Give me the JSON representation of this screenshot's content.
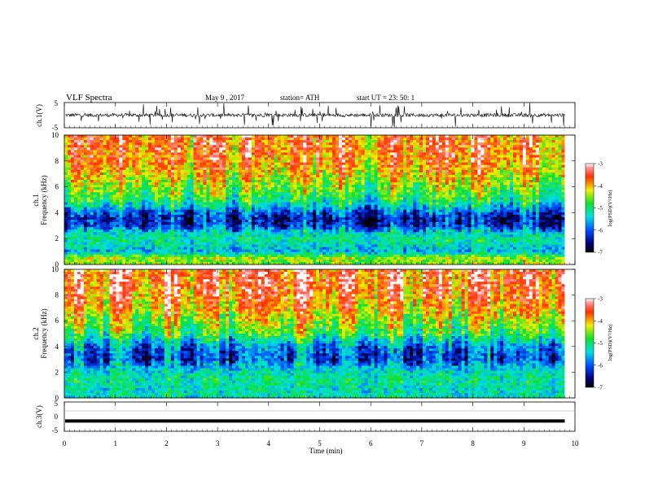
{
  "header": {
    "title": "VLF  Spectra",
    "date": "May 9  , 2017",
    "station": "station= ATH",
    "start": "start  UT  =   23: 50: 1"
  },
  "chart_data": [
    {
      "type": "line",
      "panel": "ch1-waveform",
      "ylabel": "ch.1(V)",
      "ylim": [
        -5,
        5
      ],
      "yticks": [
        "5",
        "-5"
      ],
      "xlim": [
        0,
        10
      ],
      "baseline_value": 0,
      "note_values": "dense noisy trace near 0 V with many spikes"
    },
    {
      "type": "heatmap",
      "panel": "ch1-spectrogram",
      "ylabel": "ch.1\nFrequency  (kHz)",
      "ylabel_lines": [
        "ch.1",
        "Frequency  (kHz)"
      ],
      "ylim": [
        0,
        10
      ],
      "yticks": [
        "0",
        "2",
        "4",
        "6",
        "8",
        "10"
      ],
      "xlim": [
        0,
        10
      ],
      "x_end": 9.8,
      "colorbar": {
        "label": "log(PSD)(V²/Hz)",
        "range": [
          -7,
          -3
        ],
        "ticks": [
          "-3",
          "-4",
          "-5",
          "-6",
          "-7"
        ]
      },
      "profile": [
        {
          "f": 0.0,
          "v": -4.6
        },
        {
          "f": 0.5,
          "v": -4.4
        },
        {
          "f": 1.0,
          "v": -5.6
        },
        {
          "f": 1.5,
          "v": -5.3
        },
        {
          "f": 2.0,
          "v": -5.1
        },
        {
          "f": 2.5,
          "v": -5.4
        },
        {
          "f": 3.0,
          "v": -6.2
        },
        {
          "f": 3.5,
          "v": -6.4
        },
        {
          "f": 4.0,
          "v": -6.0
        },
        {
          "f": 4.5,
          "v": -5.4
        },
        {
          "f": 5.0,
          "v": -4.9
        },
        {
          "f": 6.0,
          "v": -4.5
        },
        {
          "f": 7.0,
          "v": -4.1
        },
        {
          "f": 8.0,
          "v": -3.8
        },
        {
          "f": 9.0,
          "v": -3.7
        },
        {
          "f": 10.0,
          "v": -3.7
        }
      ]
    },
    {
      "type": "heatmap",
      "panel": "ch2-spectrogram",
      "ylabel": "ch.2\nFrequency  (kHz)",
      "ylabel_lines": [
        "ch.2",
        "Frequency  (kHz)"
      ],
      "ylim": [
        0,
        10
      ],
      "yticks": [
        "0",
        "2",
        "4",
        "6",
        "8",
        "10"
      ],
      "xlim": [
        0,
        10
      ],
      "x_end": 9.8,
      "colorbar": {
        "label": "log(PSD)(V²/Hz)",
        "range": [
          -7,
          -3
        ],
        "ticks": [
          "-3",
          "-4",
          "-5",
          "-6",
          "-7"
        ]
      },
      "profile": [
        {
          "f": 0.0,
          "v": -5.2
        },
        {
          "f": 0.5,
          "v": -5.3
        },
        {
          "f": 1.0,
          "v": -5.2
        },
        {
          "f": 1.5,
          "v": -5.1
        },
        {
          "f": 2.0,
          "v": -5.3
        },
        {
          "f": 2.5,
          "v": -5.6
        },
        {
          "f": 3.0,
          "v": -6.1
        },
        {
          "f": 3.5,
          "v": -6.0
        },
        {
          "f": 4.0,
          "v": -5.8
        },
        {
          "f": 4.5,
          "v": -5.3
        },
        {
          "f": 5.0,
          "v": -4.8
        },
        {
          "f": 6.0,
          "v": -4.4
        },
        {
          "f": 7.0,
          "v": -4.0
        },
        {
          "f": 8.0,
          "v": -3.7
        },
        {
          "f": 9.0,
          "v": -3.6
        },
        {
          "f": 10.0,
          "v": -3.6
        }
      ]
    },
    {
      "type": "line",
      "panel": "ch3-waveform",
      "ylabel": "ch.3(V)",
      "ylim": [
        -5,
        5
      ],
      "yticks": [
        "5",
        "0",
        "-5"
      ],
      "xlim": [
        0,
        10
      ],
      "xlabel": "Time  (min)",
      "xticks": [
        "0",
        "1",
        "2",
        "3",
        "4",
        "5",
        "6",
        "7",
        "8",
        "9",
        "10"
      ],
      "baseline_value": -1.5,
      "note_values": "flat thick trace at about -1.5 V"
    }
  ]
}
